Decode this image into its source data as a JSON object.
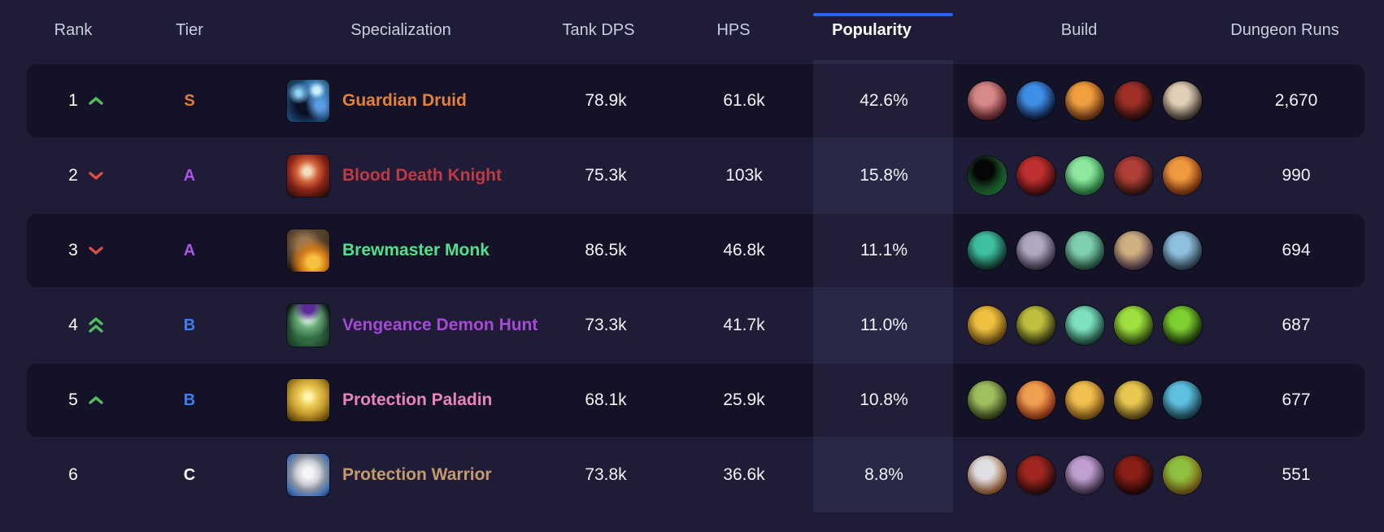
{
  "header": {
    "columns": [
      {
        "label": "Rank"
      },
      {
        "label": "Tier"
      },
      {
        "label": "Specialization"
      },
      {
        "label": "Tank DPS"
      },
      {
        "label": "HPS"
      },
      {
        "label": "Popularity",
        "active": true
      },
      {
        "label": "Build"
      },
      {
        "label": "Dungeon Runs"
      }
    ],
    "active_column": "Popularity"
  },
  "colors": {
    "accent_blue": "#2b63ea",
    "trend_up": "#4cc35f",
    "trend_down": "#dd4f44",
    "tier_s": "#e27b35",
    "tier_a": "#a855e8",
    "tier_b": "#3f7ef0",
    "tier_c": "#ffffff"
  },
  "rows": [
    {
      "rank": "1",
      "trend": "up",
      "tier": "S",
      "tier_color": "#e27b35",
      "spec": {
        "name": "Guardian Druid",
        "color": "#e5813a",
        "icon": "bear-paw-icon",
        "icon_class": "druid"
      },
      "tank_dps": "78.9k",
      "hps": "61.6k",
      "popularity": "42.6%",
      "dungeon_runs": "2,670",
      "build": [
        {
          "name": "maul-ability-icon",
          "c1": "#d88a8a",
          "c2": "#5a1820"
        },
        {
          "name": "blue-swirl-spell-icon",
          "c1": "#3f8fe8",
          "c2": "#06102e"
        },
        {
          "name": "orange-bear-icon",
          "c1": "#f0a040",
          "c2": "#6a2c10"
        },
        {
          "name": "dark-wolf-icon",
          "c1": "#a03028",
          "c2": "#200808"
        },
        {
          "name": "bone-claws-icon",
          "c1": "#e0d0b8",
          "c2": "#3a2c20"
        }
      ]
    },
    {
      "rank": "2",
      "trend": "down",
      "tier": "A",
      "tier_color": "#a855e8",
      "spec": {
        "name": "Blood Death Knight",
        "color": "#bf3a45",
        "icon": "blood-skull-icon",
        "icon_class": "dk"
      },
      "tank_dps": "75.3k",
      "hps": "103k",
      "popularity": "15.8%",
      "dungeon_runs": "990",
      "build": [
        {
          "name": "green-ring-icon",
          "c1": "#060606",
          "c2": "#2fa84f"
        },
        {
          "name": "red-orb-icon",
          "c1": "#c03030",
          "c2": "#400a0a"
        },
        {
          "name": "green-skull-icon",
          "c1": "#8fe8a0",
          "c2": "#1a7a34"
        },
        {
          "name": "red-demon-icon",
          "c1": "#b04038",
          "c2": "#30100c"
        },
        {
          "name": "fire-orb-icon",
          "c1": "#f09a40",
          "c2": "#7a2808"
        }
      ]
    },
    {
      "rank": "3",
      "trend": "down",
      "tier": "A",
      "tier_color": "#a855e8",
      "spec": {
        "name": "Brewmaster Monk",
        "color": "#52e08d",
        "icon": "brewmaster-keg-icon",
        "icon_class": "monk"
      },
      "tank_dps": "86.5k",
      "hps": "46.8k",
      "popularity": "11.1%",
      "dungeon_runs": "694",
      "build": [
        {
          "name": "teal-vortex-icon",
          "c1": "#3fc0a0",
          "c2": "#0c2a24"
        },
        {
          "name": "grey-monk-figure-icon",
          "c1": "#b0a8c0",
          "c2": "#3a3048"
        },
        {
          "name": "jade-brew-icon",
          "c1": "#7fd0b0",
          "c2": "#1d4a3a"
        },
        {
          "name": "bronze-seal-icon",
          "c1": "#d0b080",
          "c2": "#4a3050"
        },
        {
          "name": "storm-bolt-icon",
          "c1": "#8fc0e0",
          "c2": "#2a3c4a"
        }
      ]
    },
    {
      "rank": "4",
      "trend": "up-double",
      "tier": "B",
      "tier_color": "#3f7ef0",
      "spec": {
        "name": "Vengeance Demon Hunter",
        "color": "#a64ad4",
        "icon": "demon-face-icon",
        "icon_class": "dh"
      },
      "tank_dps": "73.3k",
      "hps": "41.7k",
      "popularity": "11.0%",
      "dungeon_runs": "687",
      "build": [
        {
          "name": "gold-sigil-icon",
          "c1": "#f0c040",
          "c2": "#6a4a10"
        },
        {
          "name": "fel-beast-icon",
          "c1": "#c0c040",
          "c2": "#2a2c0a"
        },
        {
          "name": "spirit-bomb-icon",
          "c1": "#7fe0c0",
          "c2": "#134a38"
        },
        {
          "name": "fel-glyph-icon",
          "c1": "#a0e040",
          "c2": "#2a4a0a"
        },
        {
          "name": "fel-demon-icon",
          "c1": "#7fd030",
          "c2": "#142a06"
        }
      ]
    },
    {
      "rank": "5",
      "trend": "up",
      "tier": "B",
      "tier_color": "#3f7ef0",
      "spec": {
        "name": "Protection Paladin",
        "color": "#ea85ba",
        "icon": "gold-shield-icon",
        "icon_class": "paladin"
      },
      "tank_dps": "68.1k",
      "hps": "25.9k",
      "popularity": "10.8%",
      "dungeon_runs": "677",
      "build": [
        {
          "name": "lion-crest-icon",
          "c1": "#a0c060",
          "c2": "#2a3a14"
        },
        {
          "name": "flame-pillar-icon",
          "c1": "#f0a050",
          "c2": "#a02810"
        },
        {
          "name": "golden-flame-icon",
          "c1": "#f0c050",
          "c2": "#8a5410"
        },
        {
          "name": "gold-shield-icon",
          "c1": "#e8c850",
          "c2": "#5a420e"
        },
        {
          "name": "sea-dragon-icon",
          "c1": "#5fc0e0",
          "c2": "#143a4a"
        }
      ]
    },
    {
      "rank": "6",
      "trend": "none",
      "tier": "C",
      "tier_color": "#ffffff",
      "spec": {
        "name": "Protection Warrior",
        "color": "#c49a6c",
        "icon": "silver-shield-icon",
        "icon_class": "warrior"
      },
      "tank_dps": "73.8k",
      "hps": "36.6k",
      "popularity": "8.8%",
      "dungeon_runs": "551",
      "build": [
        {
          "name": "silver-shield-icon",
          "c1": "#e0e0e4",
          "c2": "#a05018"
        },
        {
          "name": "red-slash-icon",
          "c1": "#a02820",
          "c2": "#2a0808"
        },
        {
          "name": "banshee-face-icon",
          "c1": "#c0a0d0",
          "c2": "#3a2848"
        },
        {
          "name": "red-demon-face-icon",
          "c1": "#8a2018",
          "c2": "#200606"
        },
        {
          "name": "orc-face-icon",
          "c1": "#8fc040",
          "c2": "#8a5a10"
        }
      ]
    }
  ]
}
